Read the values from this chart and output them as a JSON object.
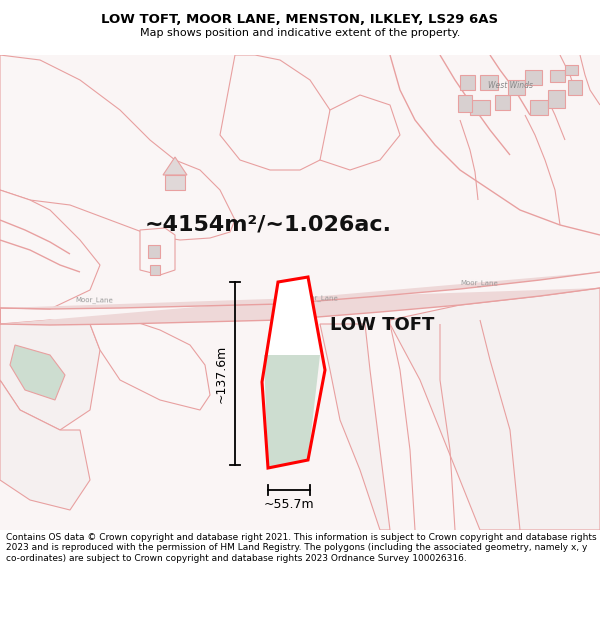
{
  "title": "LOW TOFT, MOOR LANE, MENSTON, ILKLEY, LS29 6AS",
  "subtitle": "Map shows position and indicative extent of the property.",
  "area_text": "~4154m²/~1.026ac.",
  "label_low_toft": "LOW TOFT",
  "dim_height": "~137.6m",
  "dim_width": "~55.7m",
  "footer": "Contains OS data © Crown copyright and database right 2021. This information is subject to Crown copyright and database rights 2023 and is reproduced with the permission of HM Land Registry. The polygons (including the associated geometry, namely x, y co-ordinates) are subject to Crown copyright and database rights 2023 Ordnance Survey 100026316.",
  "bg_color": "#ffffff",
  "map_bg": "#faf8f8",
  "road_color": "#e8a0a0",
  "plot_fill": "#cdddd0",
  "plot_fill_upper": "#ffffff",
  "plot_edge": "#ff0000",
  "dim_color": "#000000",
  "title_color": "#000000",
  "footer_color": "#000000",
  "road_fill": "#e8b8b8",
  "building_fill": "#d8d0d0",
  "green_patch": "#cdddd0"
}
